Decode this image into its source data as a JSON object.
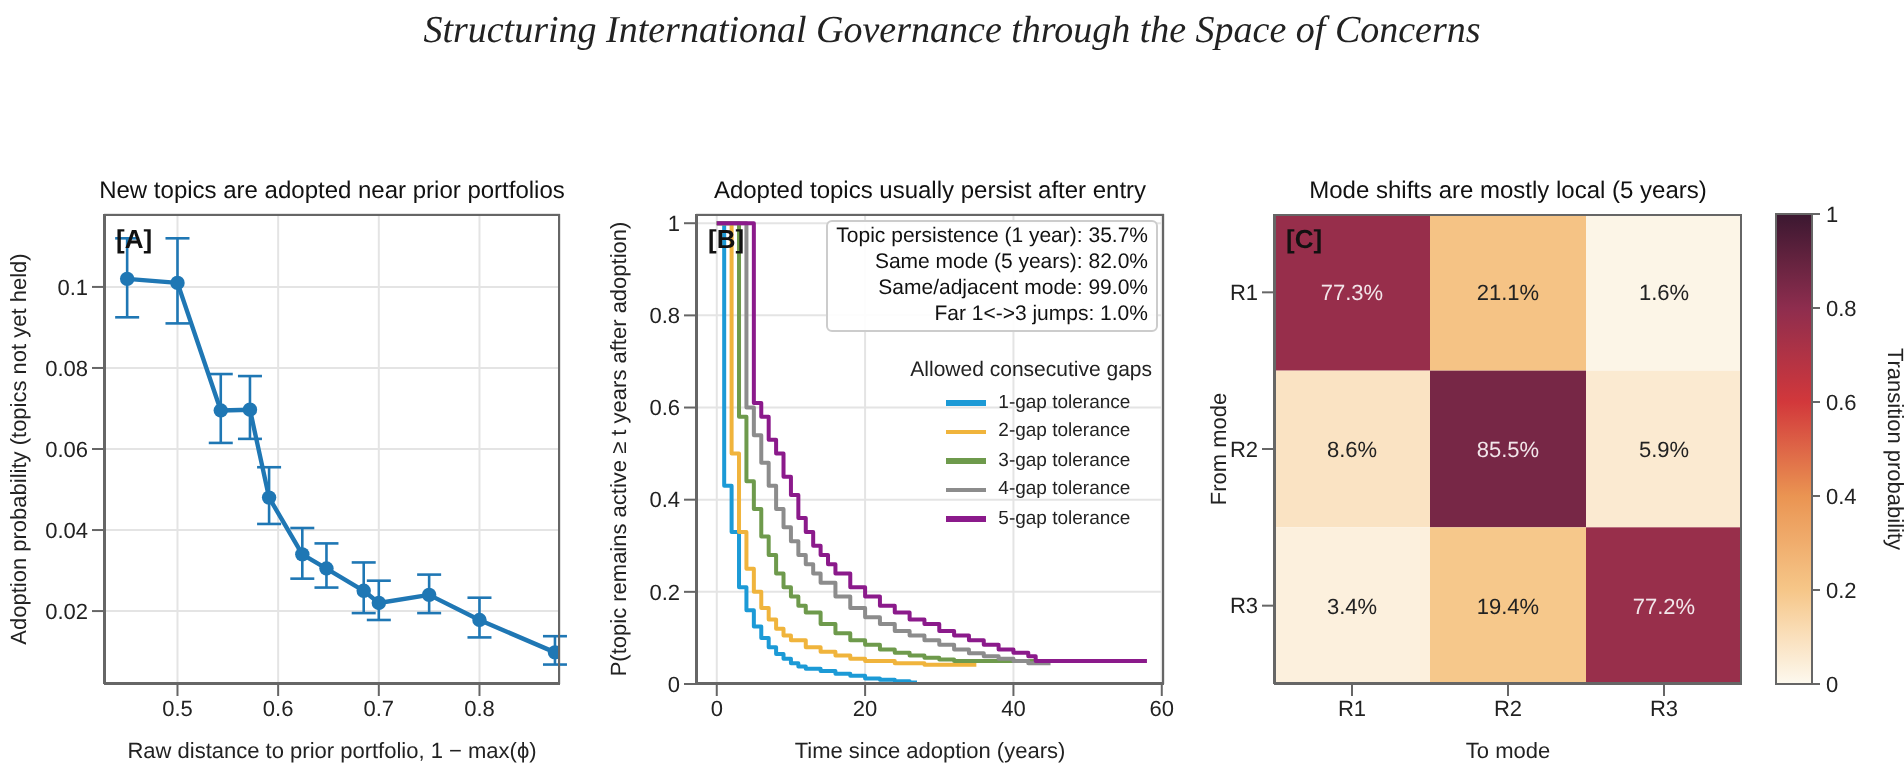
{
  "chart_data": [
    {
      "type": "line",
      "title": "New topics are adopted near prior portfolios",
      "xlabel": "Raw distance to prior portfolio, 1 − max(ϕ)",
      "ylabel": "Adoption probability (topics not yet held)",
      "annotations": [
        "Structuring International Governance through the Space of Concerns",
        "[A]"
      ],
      "x": [
        0.45,
        0.5,
        0.543,
        0.572,
        0.591,
        0.624,
        0.648,
        0.685,
        0.7,
        0.75,
        0.8,
        0.875
      ],
      "series": [
        {
          "color": "#1f77b4",
          "values": [
            0.102,
            0.101,
            0.0695,
            0.0697,
            0.048,
            0.034,
            0.0305,
            0.025,
            0.022,
            0.024,
            0.0178,
            0.0098
          ],
          "errors": [
            [
              0.0925,
              0.112
            ],
            [
              0.091,
              0.112
            ],
            [
              0.0615,
              0.0785
            ],
            [
              0.0625,
              0.078
            ],
            [
              0.0415,
              0.0555
            ],
            [
              0.028,
              0.0405
            ],
            [
              0.0258,
              0.0367
            ],
            [
              0.0195,
              0.032
            ],
            [
              0.0178,
              0.0275
            ],
            [
              0.0195,
              0.029
            ],
            [
              0.0135,
              0.0233
            ],
            [
              0.0068,
              0.0138
            ]
          ]
        }
      ],
      "xlim": [
        0.427,
        0.88
      ],
      "xticks": [
        0.5,
        0.6,
        0.7,
        0.8
      ],
      "ylim": [
        0.002,
        0.118
      ],
      "yticks": [
        0.02,
        0.04,
        0.06,
        0.08,
        0.1
      ],
      "grid": true,
      "marker": "circle",
      "line_style": "solid"
    },
    {
      "type": "step",
      "title": "Adopted topics usually persist after entry",
      "xlabel": "Time since adoption (years)",
      "ylabel": "P(topic remains active ≥ t years after adoption)",
      "legend_title": "Allowed consecutive gaps",
      "annotations": [
        "[B]",
        "Topic persistence (1 year): 35.7%",
        "Same mode (5 years): 82.0%",
        "Same/adjacent mode: 99.0%",
        "Far 1<->3 jumps: 1.0%"
      ],
      "series": [
        {
          "name": "1-gap tolerance",
          "color": "#1c9ad6",
          "x": [
            0,
            1,
            2,
            3,
            4,
            5,
            6,
            7,
            8,
            9,
            10,
            11,
            12,
            14,
            16,
            18,
            20,
            22,
            24,
            26,
            27
          ],
          "values": [
            1,
            0.43,
            0.33,
            0.21,
            0.16,
            0.125,
            0.1,
            0.08,
            0.065,
            0.055,
            0.045,
            0.038,
            0.033,
            0.028,
            0.022,
            0.018,
            0.012,
            0.009,
            0.006,
            0.003,
            0.003
          ]
        },
        {
          "name": "2-gap tolerance",
          "color": "#f0b43c",
          "x": [
            0,
            2,
            3,
            4,
            5,
            6,
            7,
            8,
            9,
            10,
            12,
            14,
            16,
            18,
            20,
            24,
            28,
            35
          ],
          "values": [
            1,
            0.5,
            0.33,
            0.25,
            0.2,
            0.165,
            0.14,
            0.12,
            0.105,
            0.095,
            0.08,
            0.07,
            0.062,
            0.055,
            0.05,
            0.045,
            0.042,
            0.042
          ]
        },
        {
          "name": "3-gap tolerance",
          "color": "#6e9a4c",
          "x": [
            0,
            3,
            4,
            5,
            6,
            7,
            8,
            9,
            10,
            11,
            12,
            14,
            16,
            18,
            20,
            22,
            24,
            26,
            28,
            30,
            32,
            44
          ],
          "values": [
            1,
            0.58,
            0.44,
            0.38,
            0.32,
            0.28,
            0.24,
            0.21,
            0.19,
            0.17,
            0.155,
            0.13,
            0.11,
            0.095,
            0.085,
            0.075,
            0.068,
            0.062,
            0.057,
            0.053,
            0.05,
            0.05
          ]
        },
        {
          "name": "4-gap tolerance",
          "color": "#8c8c8c",
          "x": [
            0,
            4,
            5,
            6,
            7,
            8,
            9,
            10,
            11,
            12,
            13,
            14,
            16,
            18,
            20,
            22,
            24,
            26,
            28,
            30,
            32,
            34,
            36,
            38,
            40,
            42,
            45
          ],
          "values": [
            1,
            0.6,
            0.54,
            0.48,
            0.43,
            0.38,
            0.34,
            0.31,
            0.28,
            0.26,
            0.24,
            0.22,
            0.19,
            0.165,
            0.145,
            0.13,
            0.115,
            0.105,
            0.095,
            0.085,
            0.075,
            0.067,
            0.06,
            0.055,
            0.05,
            0.045,
            0.045
          ]
        },
        {
          "name": "5-gap tolerance",
          "color": "#8b1a8b",
          "x": [
            0,
            5,
            6,
            7,
            8,
            9,
            10,
            11,
            12,
            13,
            14,
            15,
            16,
            18,
            20,
            22,
            24,
            26,
            28,
            30,
            32,
            34,
            36,
            38,
            40,
            42,
            43,
            58
          ],
          "values": [
            1,
            0.61,
            0.58,
            0.53,
            0.5,
            0.45,
            0.41,
            0.36,
            0.33,
            0.3,
            0.28,
            0.26,
            0.24,
            0.21,
            0.19,
            0.17,
            0.155,
            0.14,
            0.13,
            0.115,
            0.105,
            0.095,
            0.085,
            0.075,
            0.068,
            0.06,
            0.05,
            0.05
          ]
        }
      ],
      "xlim": [
        -2.8,
        60.3
      ],
      "xticks": [
        0,
        20,
        40,
        60
      ],
      "ylim": [
        0,
        1.02
      ],
      "yticks": [
        0,
        0.2,
        0.4,
        0.6,
        0.8,
        1
      ],
      "grid": true,
      "legend": "right",
      "line_style": "solid"
    },
    {
      "type": "heatmap",
      "title": "Mode shifts are mostly local (5 years)",
      "xlabel": "To mode",
      "ylabel": "From mode",
      "clabel": "Transition probability",
      "annotations": [
        "[C]"
      ],
      "categories": [
        "R1",
        "R2",
        "R3"
      ],
      "y_categories": [
        "R1",
        "R2",
        "R3"
      ],
      "cells": [
        [
          0.773,
          0.211,
          0.016
        ],
        [
          0.086,
          0.855,
          0.059
        ],
        [
          0.034,
          0.194,
          0.772
        ]
      ],
      "cell_labels": [
        [
          "77.3%",
          "21.1%",
          "1.6%"
        ],
        [
          "8.6%",
          "85.5%",
          "5.9%"
        ],
        [
          "3.4%",
          "19.4%",
          "77.2%"
        ]
      ],
      "clim": [
        0,
        1
      ],
      "cticks": [
        0,
        0.2,
        0.4,
        0.6,
        0.8,
        1
      ]
    }
  ]
}
